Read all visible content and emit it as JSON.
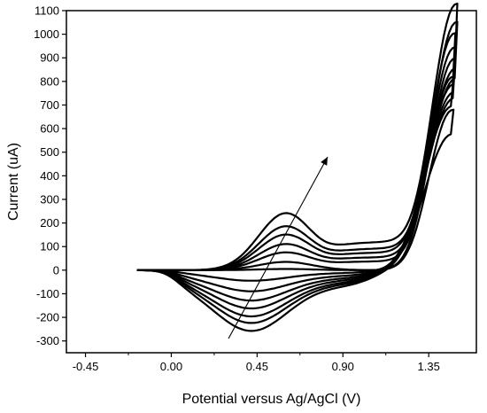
{
  "chart_data": {
    "type": "line",
    "title": "",
    "xlabel": "Potential versus Ag/AgCl (V)",
    "ylabel": "Current (uA)",
    "xlim": [
      -0.55,
      1.6
    ],
    "ylim": [
      -350,
      1100
    ],
    "x_ticks": [
      -0.45,
      0.0,
      0.45,
      0.9,
      1.35
    ],
    "x_tick_labels": [
      "-0.45",
      "0.00",
      "0.45",
      "0.90",
      "1.35"
    ],
    "y_ticks": [
      -300,
      -200,
      -100,
      0,
      100,
      200,
      300,
      400,
      500,
      600,
      700,
      800,
      900,
      1000,
      1100
    ],
    "y_tick_labels": [
      "-300",
      "-200",
      "-100",
      "0",
      "100",
      "200",
      "300",
      "400",
      "500",
      "600",
      "700",
      "800",
      "900",
      "1000",
      "1100"
    ],
    "grid": false,
    "legend": "none",
    "line_color": "#000000",
    "annotation": {
      "type": "arrow",
      "from": [
        0.3,
        -290
      ],
      "to": [
        0.82,
        480
      ]
    },
    "series": [
      {
        "peak_anodic": 5,
        "peak_cathodic": -40,
        "anodic_end": 680,
        "turn_x": 1.48
      },
      {
        "peak_anodic": 35,
        "peak_cathodic": -80,
        "anodic_end": 820,
        "turn_x": 1.48
      },
      {
        "peak_anodic": 75,
        "peak_cathodic": -115,
        "anodic_end": 860,
        "turn_x": 1.49
      },
      {
        "peak_anodic": 110,
        "peak_cathodic": -145,
        "anodic_end": 890,
        "turn_x": 1.49
      },
      {
        "peak_anodic": 150,
        "peak_cathodic": -175,
        "anodic_end": 930,
        "turn_x": 1.49
      },
      {
        "peak_anodic": 185,
        "peak_cathodic": -200,
        "anodic_end": 960,
        "turn_x": 1.5
      },
      {
        "peak_anodic": 240,
        "peak_cathodic": -230,
        "anodic_end": 1010,
        "turn_x": 1.5
      }
    ]
  }
}
